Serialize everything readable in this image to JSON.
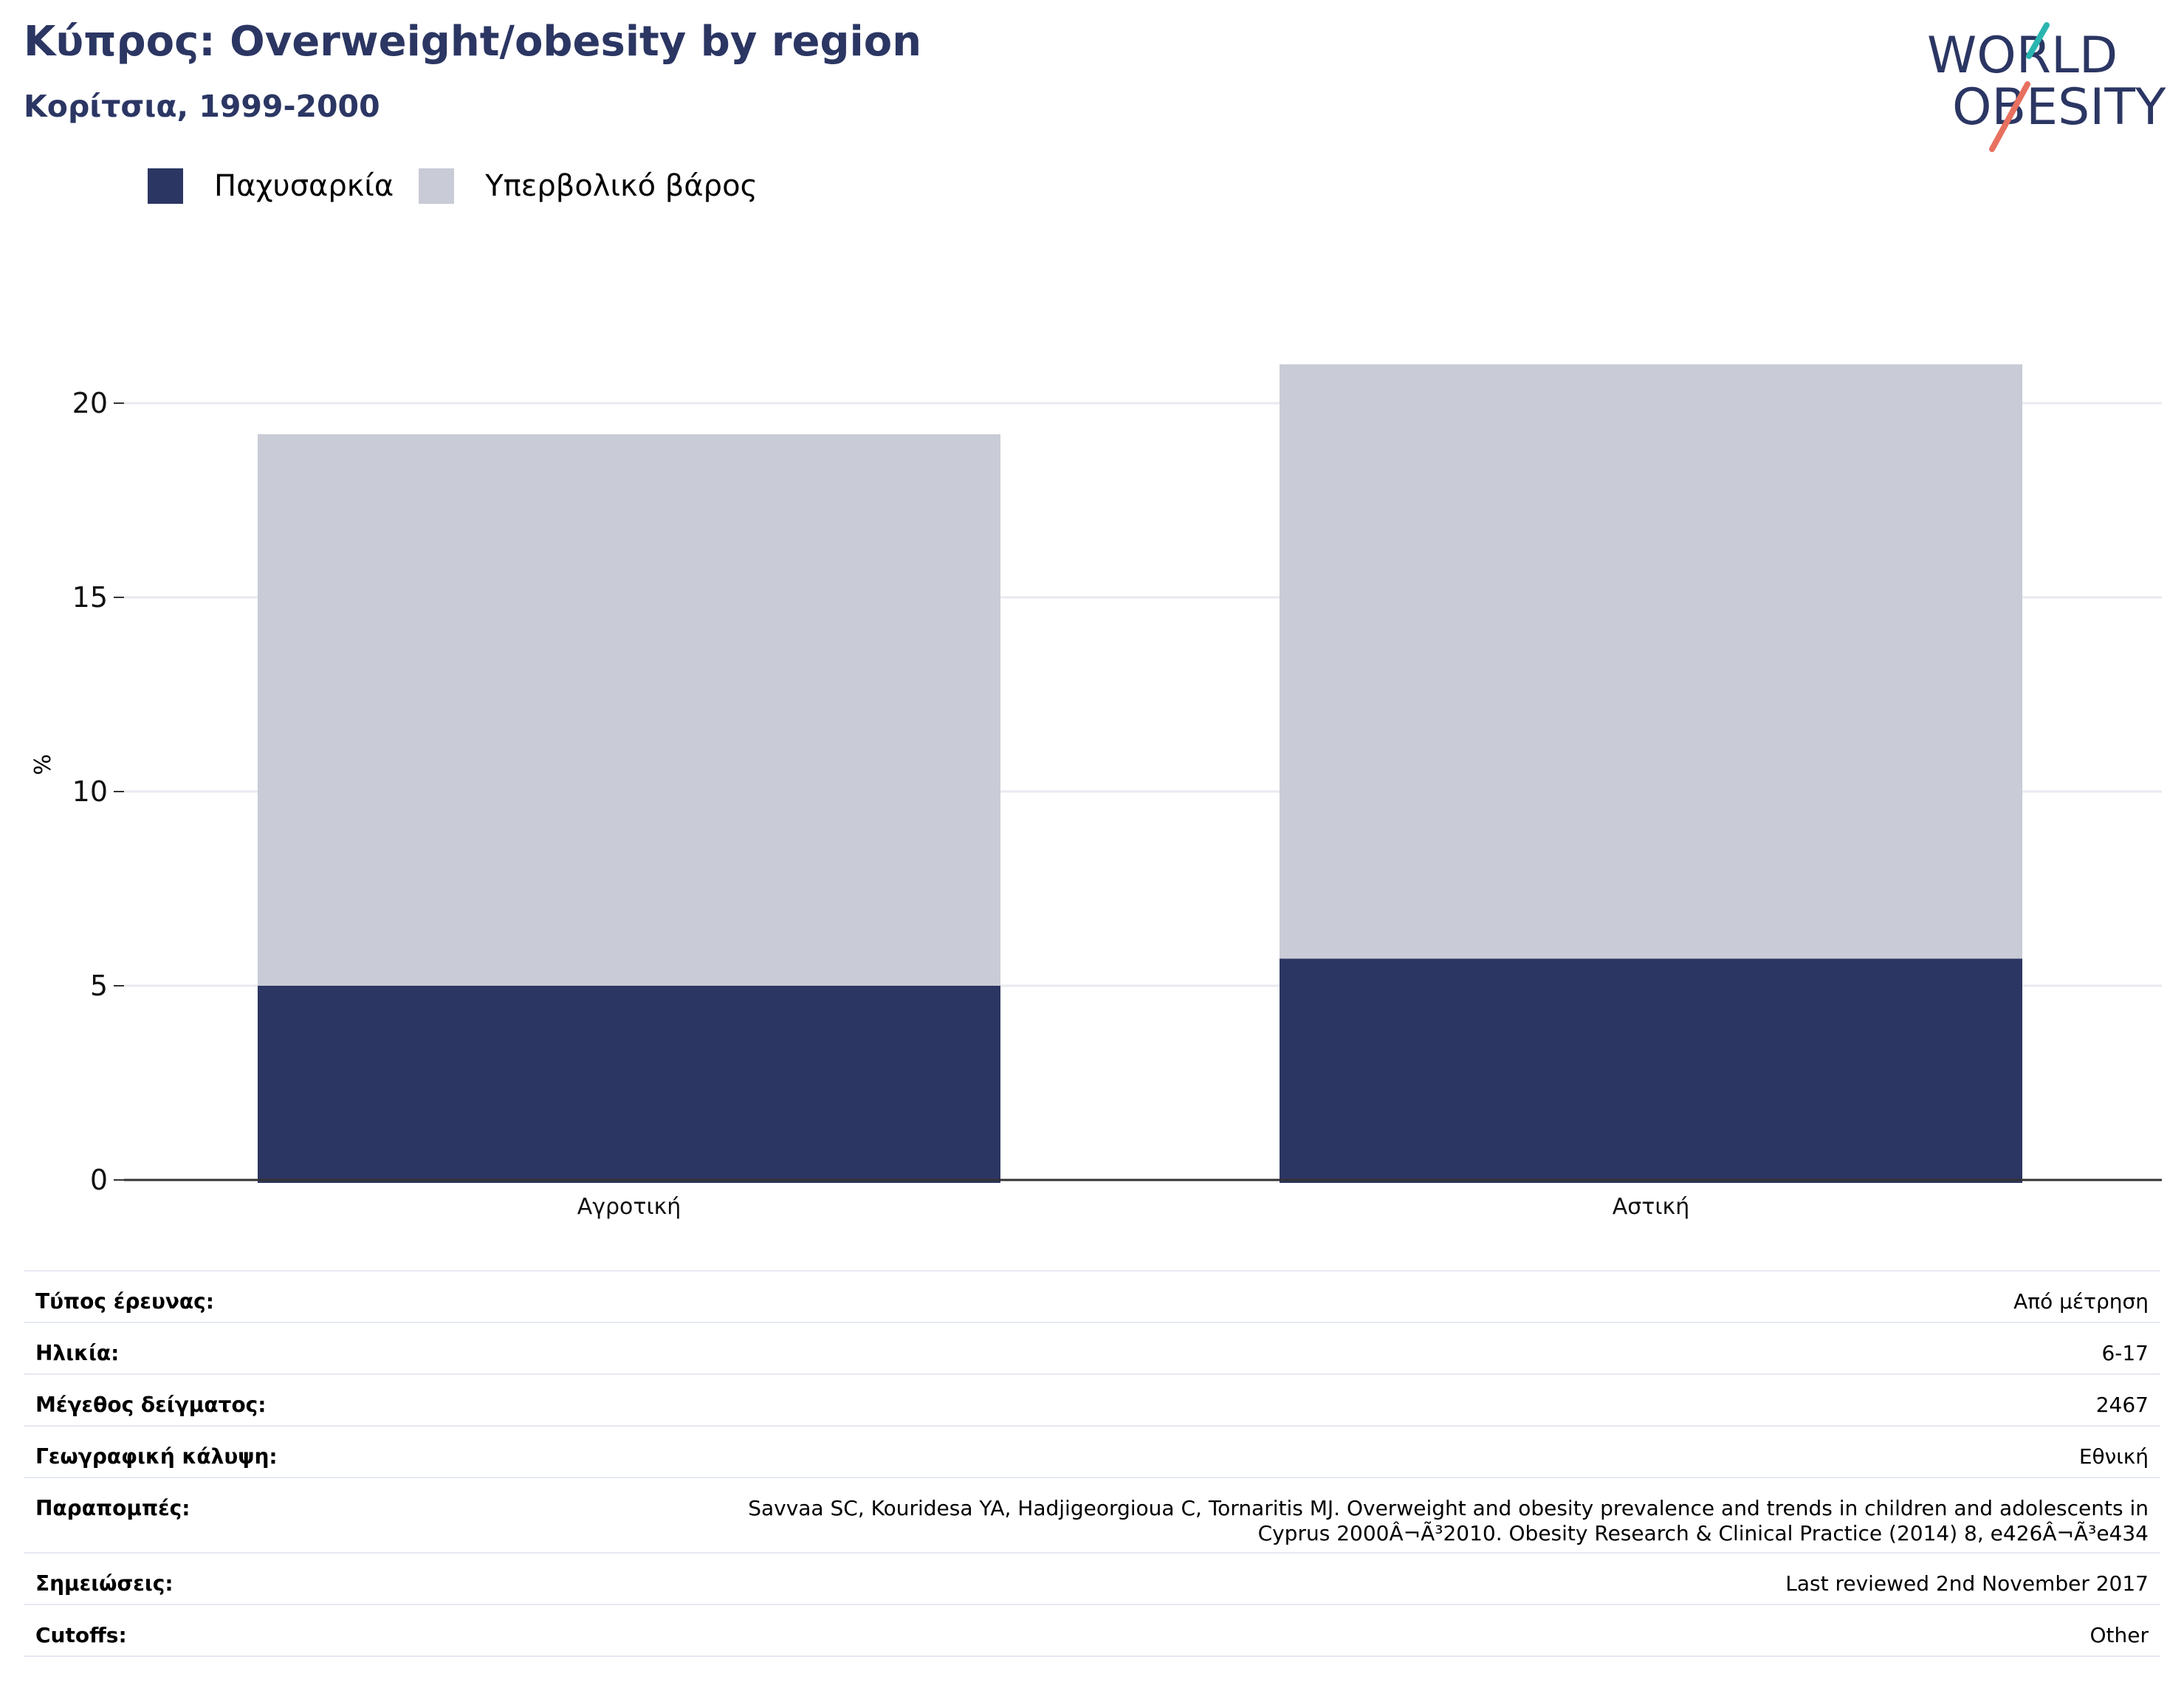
{
  "header": {
    "title": "Κύπρος: Overweight/obesity by region",
    "subtitle": "Κορίτσια, 1999-2000"
  },
  "logo": {
    "line1": "WORLD",
    "line2": "OBESITY",
    "text_color": "#2b3663",
    "slash_teal": "#2bb5b0",
    "slash_coral": "#e8705f"
  },
  "colors": {
    "obesity": "#2b3663",
    "overweight": "#c9cbd6",
    "grid": "#e8eaf0",
    "axis": "#333333"
  },
  "chart_data": {
    "type": "bar",
    "stacked": true,
    "categories": [
      "Αγροτική",
      "Αστική"
    ],
    "series": [
      {
        "name": "Παχυσαρκία",
        "color": "#2b3663",
        "values": [
          5.0,
          5.7
        ]
      },
      {
        "name": "Υπερβολικό βάρος",
        "color": "#c9cbd6",
        "values": [
          14.2,
          15.3
        ]
      }
    ],
    "ylabel": "%",
    "ylim": [
      0,
      21
    ],
    "yticks": [
      0,
      5,
      10,
      15,
      20
    ],
    "grid": true,
    "legend": "top-left"
  },
  "info_table": [
    {
      "key": "Τύπος έρευνας:",
      "value": [
        "Από μέτρηση"
      ]
    },
    {
      "key": "Ηλικία:",
      "value": [
        "6-17"
      ]
    },
    {
      "key": "Μέγεθος δείγματος:",
      "value": [
        "2467"
      ]
    },
    {
      "key": "Γεωγραφική κάλυψη:",
      "value": [
        "Εθνική"
      ]
    },
    {
      "key": "Παραπομπές:",
      "value": [
        "Savvaa SC, Kouridesa YA, Hadjigeorgioua C, Tornaritis MJ. Overweight and obesity prevalence and trends in children and adolescents in",
        "Cyprus 2000Â¬Ã³2010. Obesity Research & Clinical Practice (2014) 8, e426Â¬Ã³e434"
      ]
    },
    {
      "key": "Σημειώσεις:",
      "value": [
        "Last reviewed 2nd November 2017"
      ]
    },
    {
      "key": "Cutoffs:",
      "value": [
        "Other"
      ]
    }
  ]
}
